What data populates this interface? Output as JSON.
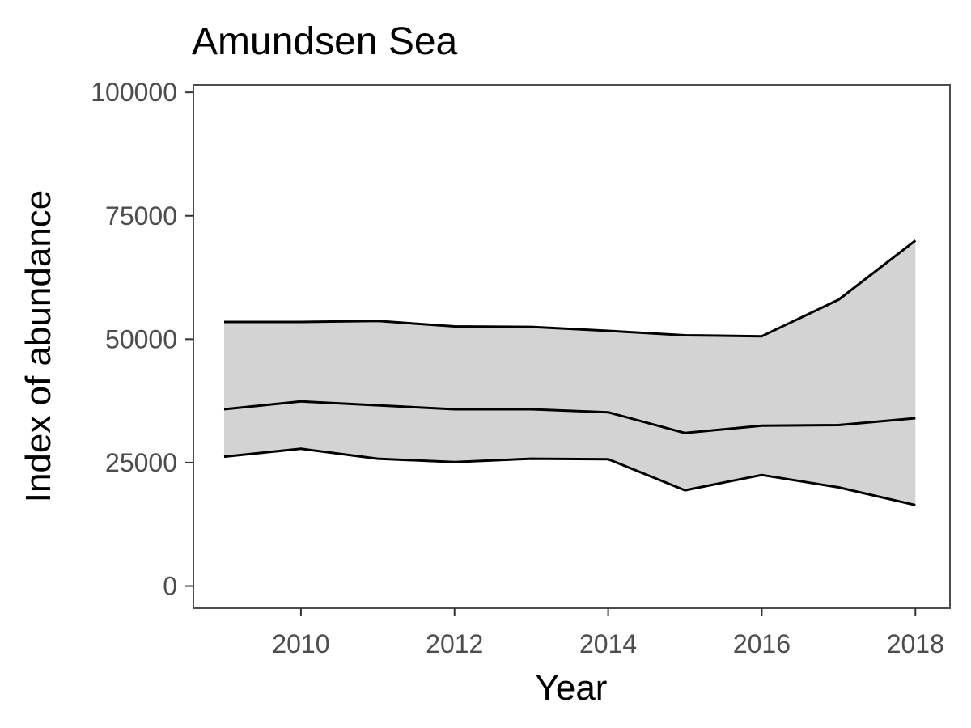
{
  "chart_data": {
    "type": "area",
    "title": "Amundsen Sea",
    "xlabel": "Year",
    "ylabel": "Index of abundance",
    "xlim": [
      2008.6,
      2018.45
    ],
    "ylim": [
      -4500,
      101500
    ],
    "x_ticks": [
      2010,
      2012,
      2014,
      2016,
      2018
    ],
    "y_ticks": [
      0,
      25000,
      50000,
      75000,
      100000
    ],
    "x_tick_labels": [
      "2010",
      "2012",
      "2014",
      "2016",
      "2018"
    ],
    "y_tick_labels": [
      "0",
      "25000",
      "50000",
      "75000",
      "100000"
    ],
    "grid": false,
    "x": [
      2009,
      2010,
      2011,
      2012,
      2013,
      2014,
      2015,
      2016,
      2017,
      2018
    ],
    "series": [
      {
        "role": "upper",
        "values": [
          53500,
          53500,
          53700,
          52600,
          52500,
          51700,
          50800,
          50600,
          58000,
          70000
        ]
      },
      {
        "role": "estimate",
        "values": [
          35800,
          37400,
          36600,
          35800,
          35800,
          35200,
          31000,
          32500,
          32600,
          34000
        ]
      },
      {
        "role": "lower",
        "values": [
          26200,
          27800,
          25800,
          25100,
          25800,
          25700,
          19400,
          22500,
          20000,
          16400
        ]
      }
    ],
    "colors": {
      "band": "#d3d3d3",
      "line": "#000000",
      "axis": "#4d4d4d"
    }
  }
}
